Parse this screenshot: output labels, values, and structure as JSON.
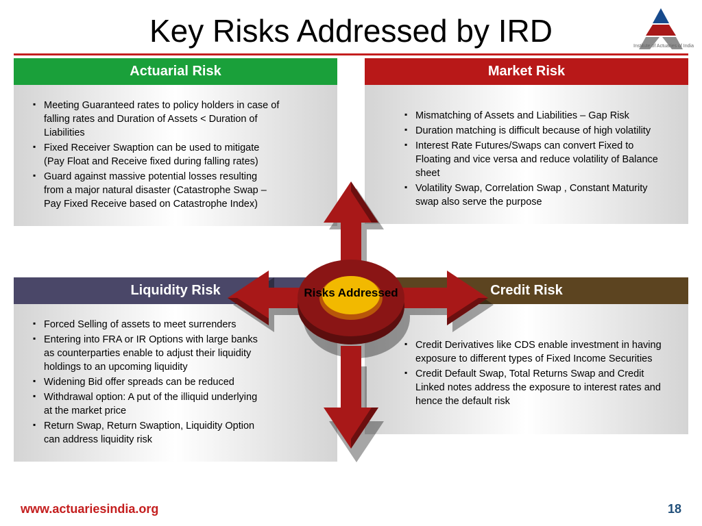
{
  "title": "Key Risks Addressed by IRD",
  "logo_label": "Institute of Actuaries of India",
  "center_label": "Risks Addressed",
  "footer_url": "www.actuariesindia.org",
  "page_number": "18",
  "colors": {
    "accent_rule": "#c41e1e",
    "arrow": "#a81818",
    "arrow_dark": "#6b0f0f",
    "hub_outer": "#8a1515",
    "hub_inner": "#f2b900",
    "footer_url": "#c41e1e",
    "footer_num": "#1f4e79"
  },
  "logo": {
    "triangle_top": "#174a8c",
    "triangle_mid": "#a81818",
    "triangle_base": "#8e8e8e"
  },
  "quadrants": {
    "tl": {
      "title": "Actuarial Risk",
      "header_color": "#1aa03a",
      "items": [
        "Meeting Guaranteed rates to policy holders in case of falling rates and Duration of Assets < Duration of Liabilities",
        "Fixed Receiver Swaption can be used to mitigate (Pay Float and Receive fixed during falling rates)",
        "Guard against massive potential losses resulting from a major natural disaster (Catastrophe Swap – Pay Fixed Receive based on Catastrophe Index)"
      ]
    },
    "tr": {
      "title": "Market Risk",
      "header_color": "#b81818",
      "items": [
        "Mismatching of Assets and Liabilities – Gap Risk",
        "Duration matching is difficult because of high volatility",
        "Interest Rate Futures/Swaps can convert Fixed to Floating and vice versa and reduce volatility of Balance sheet",
        "Volatility Swap, Correlation Swap , Constant Maturity swap also serve the purpose"
      ]
    },
    "bl": {
      "title": "Liquidity Risk",
      "header_color": "#4a4768",
      "items": [
        "Forced Selling of assets to meet surrenders",
        "Entering into FRA or IR Options with large banks as counterparties enable to adjust their liquidity holdings to an upcoming liquidity",
        "Widening Bid offer spreads can be reduced",
        "Withdrawal option: A put of the illiquid underlying at the market price",
        "Return Swap, Return Swaption, Liquidity Option can address liquidity risk"
      ]
    },
    "br": {
      "title": "Credit Risk",
      "header_color": "#5c4420",
      "items": [
        "Credit Derivatives like CDS enable investment in having exposure to different types of Fixed Income Securities",
        "Credit Default Swap, Total Returns Swap and Credit Linked notes address the exposure to interest rates and hence the default risk"
      ]
    }
  }
}
